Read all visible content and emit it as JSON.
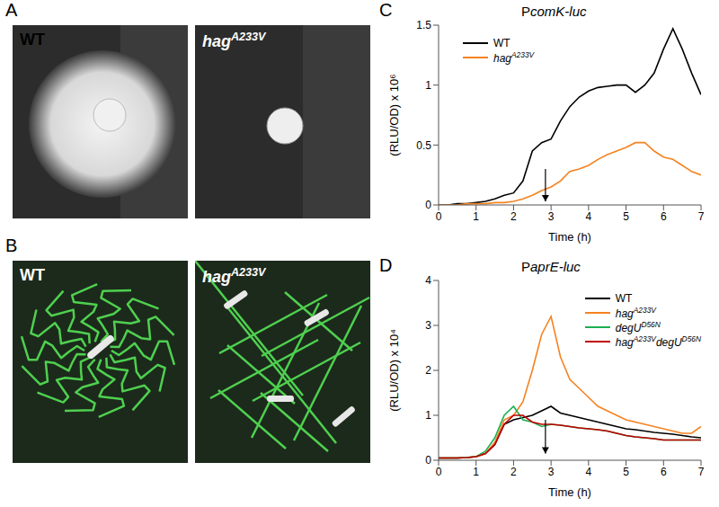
{
  "images": [
    {
      "panel": "A",
      "frames": [
        {
          "text": "WT"
        },
        {
          "text": "hagA233V"
        }
      ]
    },
    {
      "panel": "B",
      "frames": [
        {
          "text": "WT"
        },
        {
          "text": "hagA233V"
        }
      ]
    }
  ],
  "chart_data": [
    {
      "panel": "C",
      "type": "line",
      "title": "PcomK-luc",
      "x_label": "Time (h)",
      "y_label": "(RLU/OD) x 10⁶",
      "xlim": [
        0,
        7
      ],
      "xticks": [
        0,
        1,
        2,
        3,
        4,
        5,
        6,
        7
      ],
      "ylim": [
        0,
        1.5
      ],
      "yticks": [
        0,
        0.5,
        1,
        1.5
      ],
      "grid": false,
      "legend": "upper left",
      "arrow": {
        "x": 2.85,
        "from": 0.3,
        "to": 0.03
      },
      "x": [
        0,
        0.25,
        0.5,
        0.75,
        1,
        1.25,
        1.5,
        1.75,
        2,
        2.25,
        2.5,
        2.75,
        3,
        3.25,
        3.5,
        3.75,
        4,
        4.25,
        4.5,
        4.75,
        5,
        5.25,
        5.5,
        5.75,
        6,
        6.25,
        6.5,
        6.75,
        7
      ],
      "series": [
        {
          "name": "WT",
          "color": "#000000",
          "values": [
            0,
            0,
            0.01,
            0.01,
            0.02,
            0.03,
            0.05,
            0.08,
            0.1,
            0.2,
            0.45,
            0.52,
            0.55,
            0.7,
            0.82,
            0.9,
            0.95,
            0.98,
            0.99,
            1.0,
            1.0,
            0.94,
            1.0,
            1.1,
            1.3,
            1.47,
            1.3,
            1.1,
            0.92
          ]
        },
        {
          "name": "hagA233V",
          "color": "#f58220",
          "values": [
            0,
            0,
            0,
            0.01,
            0.01,
            0.01,
            0.02,
            0.02,
            0.03,
            0.05,
            0.08,
            0.12,
            0.15,
            0.2,
            0.28,
            0.3,
            0.33,
            0.38,
            0.42,
            0.45,
            0.48,
            0.52,
            0.52,
            0.45,
            0.4,
            0.38,
            0.33,
            0.28,
            0.25
          ]
        }
      ]
    },
    {
      "panel": "D",
      "type": "line",
      "title": "PaprE-luc",
      "x_label": "Time (h)",
      "y_label": "(RLU/OD) x 10⁴",
      "xlim": [
        0,
        7
      ],
      "xticks": [
        0,
        1,
        2,
        3,
        4,
        5,
        6,
        7
      ],
      "ylim": [
        0,
        4
      ],
      "yticks": [
        0,
        1,
        2,
        3,
        4
      ],
      "grid": false,
      "legend": "upper right",
      "arrow": {
        "x": 2.85,
        "from": 0.9,
        "to": 0.15
      },
      "x": [
        0,
        0.25,
        0.5,
        0.75,
        1,
        1.25,
        1.5,
        1.75,
        2,
        2.25,
        2.5,
        2.75,
        3,
        3.25,
        3.5,
        3.75,
        4,
        4.25,
        4.5,
        4.75,
        5,
        5.25,
        5.5,
        5.75,
        6,
        6.25,
        6.5,
        6.75,
        7
      ],
      "series": [
        {
          "name": "WT",
          "color": "#000000",
          "values": [
            0.05,
            0.05,
            0.05,
            0.06,
            0.08,
            0.15,
            0.35,
            0.8,
            0.9,
            0.95,
            1.0,
            1.1,
            1.2,
            1.05,
            1.0,
            0.95,
            0.9,
            0.85,
            0.8,
            0.75,
            0.7,
            0.68,
            0.65,
            0.62,
            0.6,
            0.58,
            0.55,
            0.52,
            0.5
          ]
        },
        {
          "name": "hagA233V",
          "color": "#f58220",
          "values": [
            0.05,
            0.05,
            0.05,
            0.06,
            0.08,
            0.15,
            0.4,
            0.9,
            1.0,
            1.3,
            2.0,
            2.8,
            3.2,
            2.3,
            1.8,
            1.6,
            1.4,
            1.2,
            1.1,
            1.0,
            0.9,
            0.85,
            0.8,
            0.75,
            0.7,
            0.65,
            0.6,
            0.6,
            0.75
          ]
        },
        {
          "name": "degUD56N",
          "color": "#1aaf54",
          "values": [
            0.05,
            0.05,
            0.05,
            0.06,
            0.08,
            0.2,
            0.5,
            1.0,
            1.2,
            0.9,
            0.85,
            0.75,
            0.8,
            0.78,
            0.75,
            0.72,
            0.7,
            0.68,
            0.65,
            0.6,
            0.55,
            0.52,
            0.5,
            0.48,
            0.45,
            0.45,
            0.45,
            0.45,
            0.45
          ]
        },
        {
          "name": "hagA233VdegUD56N",
          "color": "#c00000",
          "values": [
            0.05,
            0.05,
            0.05,
            0.06,
            0.08,
            0.15,
            0.35,
            0.8,
            1.0,
            1.0,
            0.85,
            0.8,
            0.8,
            0.78,
            0.75,
            0.72,
            0.7,
            0.68,
            0.65,
            0.6,
            0.55,
            0.52,
            0.5,
            0.48,
            0.45,
            0.45,
            0.45,
            0.45,
            0.45
          ]
        }
      ]
    }
  ]
}
